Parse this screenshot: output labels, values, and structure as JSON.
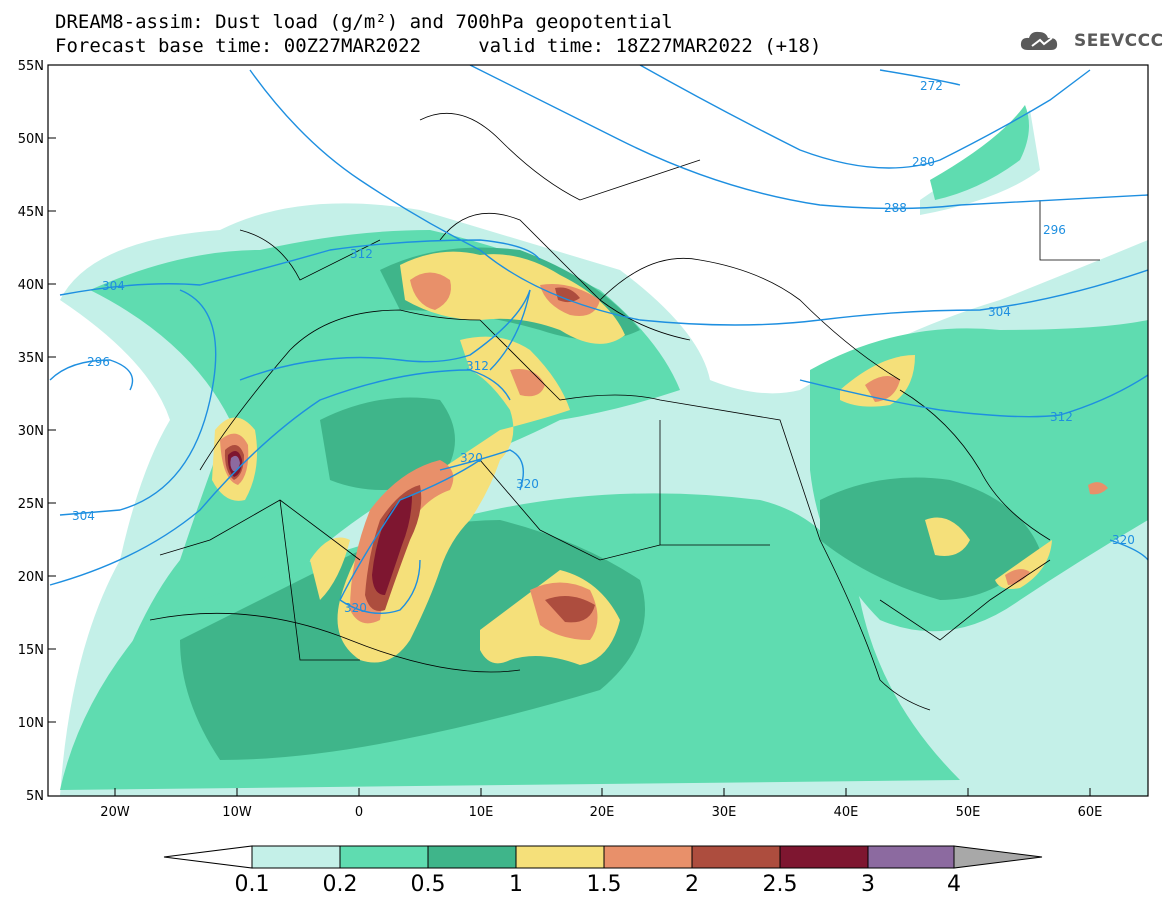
{
  "header": {
    "title_line1": "DREAM8-assim: Dust load (g/m²) and 700hPa geopotential",
    "title_line2": "Forecast base time: 00Z27MAR2022     valid time: 18Z27MAR2022 (+18)"
  },
  "logo": {
    "text": "SEEVCCC",
    "icon": "cloud-icon"
  },
  "axes": {
    "lat_labels": [
      "55N",
      "50N",
      "45N",
      "40N",
      "35N",
      "30N",
      "25N",
      "20N",
      "15N",
      "10N",
      "5N"
    ],
    "lon_labels": [
      "20W",
      "10W",
      "0",
      "10E",
      "20E",
      "30E",
      "40E",
      "50E",
      "60E"
    ]
  },
  "contours": {
    "labels": [
      "272",
      "280",
      "288",
      "296",
      "296",
      "304",
      "304",
      "304",
      "312",
      "312",
      "312",
      "320",
      "320",
      "320",
      "320"
    ]
  },
  "colorbar": {
    "labels": [
      "0.1",
      "0.2",
      "0.5",
      "1",
      "1.5",
      "2",
      "2.5",
      "3",
      "4"
    ],
    "colors": [
      "#c4f0e8",
      "#5fdcb0",
      "#3fb58a",
      "#f5e07a",
      "#e8906a",
      "#ad4d3e",
      "#7e1630",
      "#8c6aa0",
      "#a8a8a8"
    ]
  },
  "colors": {
    "c01": "#c4f0e8",
    "c02": "#5fdcb0",
    "c05": "#3fb58a",
    "c1": "#f5e07a",
    "c15": "#e8906a",
    "c2": "#ad4d3e",
    "c25": "#7e1630",
    "c3": "#8c6aa0",
    "contour": "#1e8fe0",
    "border": "#000000"
  }
}
